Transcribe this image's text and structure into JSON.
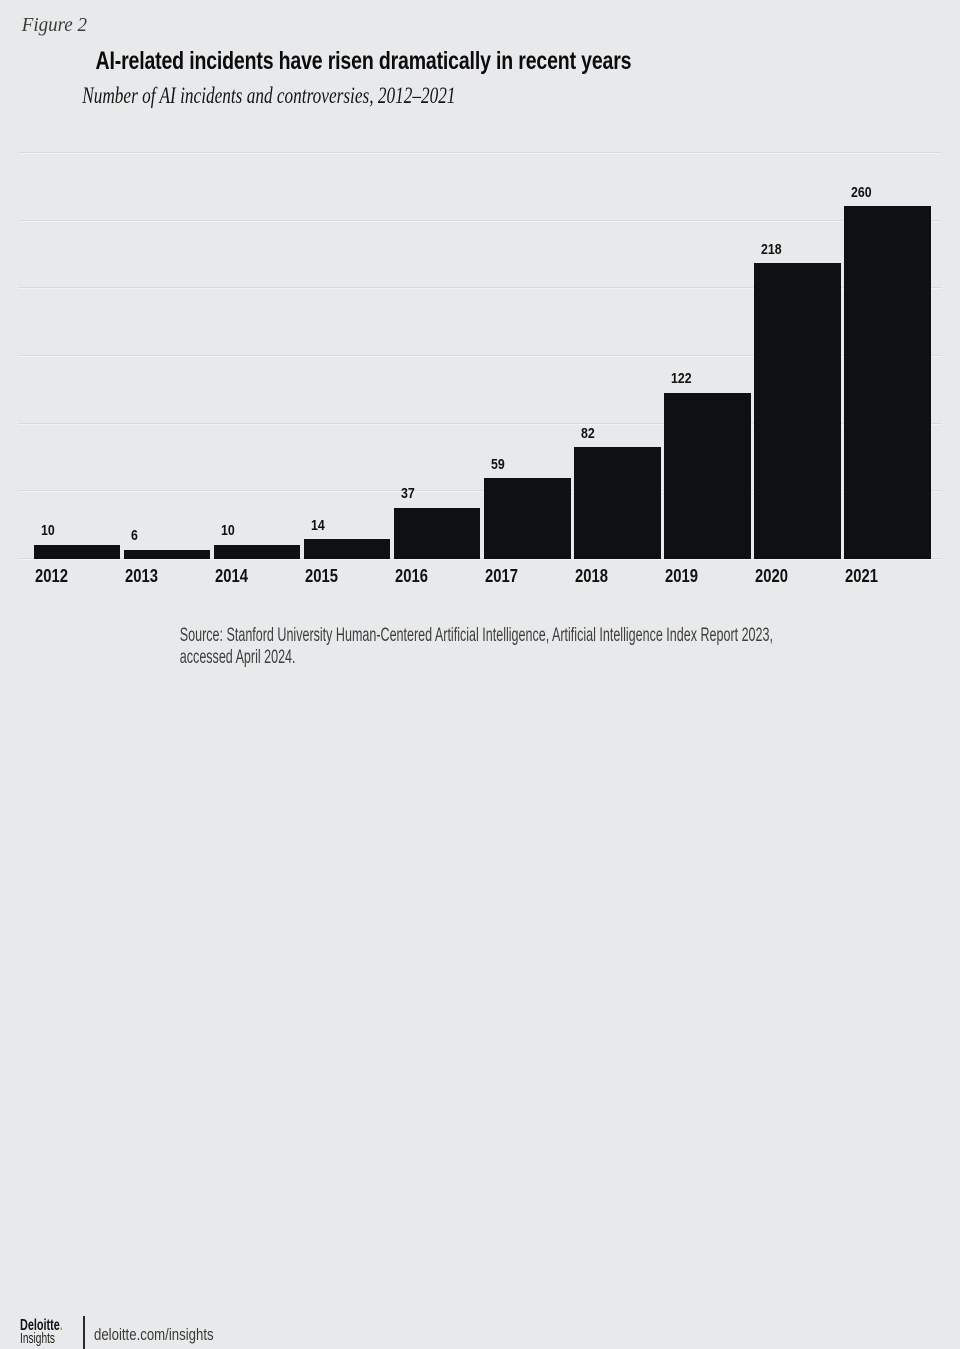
{
  "figure_label": "Figure 2",
  "title": "AI-related incidents have risen dramatically in recent years",
  "subtitle": "Number of AI incidents and controversies, 2012–2021",
  "source": "Source: Stanford University Human-Centered Artificial Intelligence, Artificial Intelligence Index Report 2023, accessed April 2024.",
  "footer": {
    "brand": "Deloitte",
    "brand_dot": ".",
    "brand_sub": "Insights",
    "url": "deloitte.com/insights"
  },
  "colors": {
    "background": "#e8e9ea",
    "bar": "#0f1011",
    "gridline": "#d9dadc",
    "gridline_highlight": "#f2f3f4",
    "accent_green": "#86bc25",
    "title_text": "#0b0b0c",
    "muted_text": "#3d3d3d"
  },
  "chart_data": {
    "type": "bar",
    "title": "AI-related incidents have risen dramatically in recent years",
    "subtitle": "Number of AI incidents and controversies, 2012–2021",
    "categories": [
      "2012",
      "2013",
      "2014",
      "2015",
      "2016",
      "2017",
      "2018",
      "2019",
      "2020",
      "2021"
    ],
    "values": [
      10,
      6,
      10,
      14,
      37,
      59,
      82,
      122,
      218,
      260
    ],
    "xlabel": "",
    "ylabel": "Number of AI incidents and controversies",
    "ylim": [
      0,
      300
    ],
    "gridline_step": 50,
    "grid": true,
    "legend": false,
    "value_labels": true,
    "bar_color": "#0f1011"
  }
}
